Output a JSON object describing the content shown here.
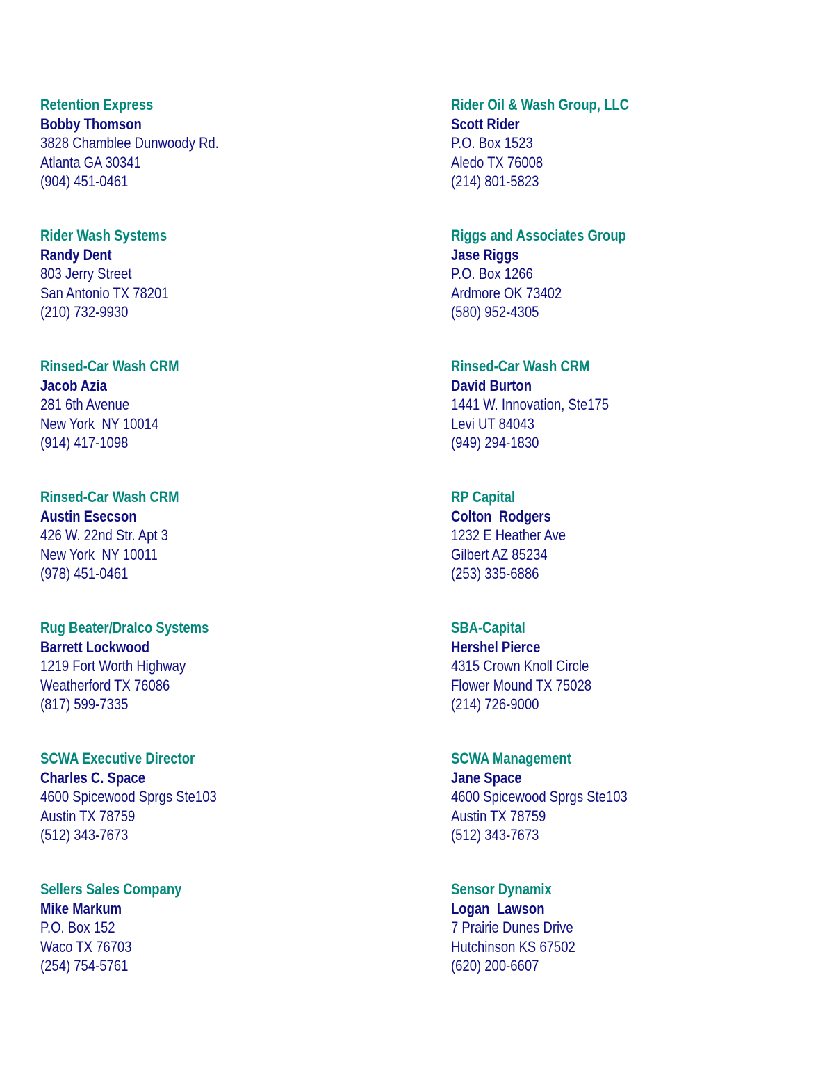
{
  "colors": {
    "company": "#00877a",
    "text": "#0d0d80"
  },
  "columns": [
    [
      {
        "company": "Retention Express",
        "contact": "Bobby Thomson",
        "address1": "3828 Chamblee Dunwoody Rd.",
        "address2": "Atlanta GA 30341",
        "phone": "(904) 451-0461"
      },
      {
        "company": "Rider Wash Systems",
        "contact": "Randy Dent",
        "address1": "803 Jerry Street",
        "address2": "San Antonio TX 78201",
        "phone": "(210) 732-9930"
      },
      {
        "company": "Rinsed-Car Wash CRM",
        "contact": "Jacob Azia",
        "address1": "281 6th Avenue",
        "address2": "New York  NY 10014",
        "phone": "(914) 417-1098"
      },
      {
        "company": "Rinsed-Car Wash CRM",
        "contact": "Austin Esecson",
        "address1": "426 W. 22nd Str. Apt 3",
        "address2": "New York  NY 10011",
        "phone": "(978) 451-0461"
      },
      {
        "company": "Rug Beater/Dralco Systems",
        "contact": "Barrett Lockwood",
        "address1": "1219 Fort Worth Highway",
        "address2": "Weatherford TX 76086",
        "phone": "(817) 599-7335"
      },
      {
        "company": "SCWA Executive Director",
        "contact": "Charles C. Space",
        "address1": "4600 Spicewood Sprgs Ste103",
        "address2": "Austin TX 78759",
        "phone": "(512) 343-7673"
      },
      {
        "company": "Sellers Sales Company",
        "contact": "Mike Markum",
        "address1": "P.O. Box 152",
        "address2": "Waco TX 76703",
        "phone": "(254) 754-5761"
      }
    ],
    [
      {
        "company": "Rider Oil & Wash Group, LLC",
        "contact": "Scott Rider",
        "address1": "P.O. Box 1523",
        "address2": "Aledo TX 76008",
        "phone": "(214) 801-5823"
      },
      {
        "company": "Riggs and Associates Group",
        "contact": "Jase Riggs",
        "address1": "P.O. Box 1266",
        "address2": "Ardmore OK 73402",
        "phone": "(580) 952-4305"
      },
      {
        "company": "Rinsed-Car Wash CRM",
        "contact": "David Burton",
        "address1": "1441 W. Innovation, Ste175",
        "address2": "Levi UT 84043",
        "phone": "(949) 294-1830"
      },
      {
        "company": "RP Capital",
        "contact": "Colton  Rodgers",
        "address1": "1232 E Heather Ave",
        "address2": "Gilbert AZ 85234",
        "phone": "(253) 335-6886"
      },
      {
        "company": "SBA-Capital",
        "contact": "Hershel Pierce",
        "address1": "4315 Crown Knoll Circle",
        "address2": "Flower Mound TX 75028",
        "phone": "(214) 726-9000"
      },
      {
        "company": "SCWA Management",
        "contact": "Jane Space",
        "address1": "4600 Spicewood Sprgs Ste103",
        "address2": "Austin TX 78759",
        "phone": "(512) 343-7673"
      },
      {
        "company": "Sensor Dynamix",
        "contact": "Logan  Lawson",
        "address1": "7 Prairie Dunes Drive",
        "address2": "Hutchinson KS 67502",
        "phone": "(620) 200-6607"
      }
    ]
  ]
}
